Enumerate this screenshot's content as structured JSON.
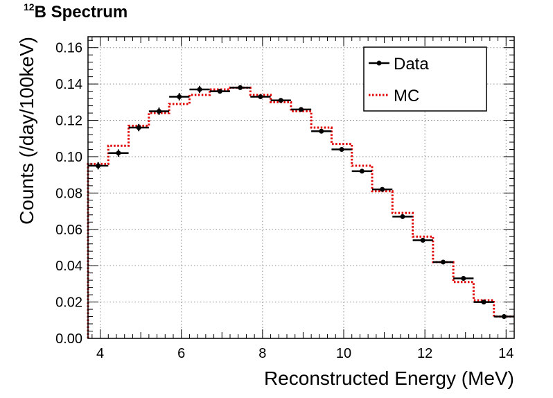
{
  "title": {
    "superscript": "12",
    "main": "B Spectrum"
  },
  "chart_data": {
    "type": "line",
    "xlabel": "Reconstructed Energy (MeV)",
    "ylabel": "Counts (/day/100keV)",
    "xlim": [
      3.7,
      14.2
    ],
    "ylim": [
      0,
      0.166
    ],
    "xticks": [
      4,
      6,
      8,
      10,
      12,
      14
    ],
    "yticks": [
      0.0,
      0.02,
      0.04,
      0.06,
      0.08,
      0.1,
      0.12,
      0.14,
      0.16
    ],
    "ytick_labels": [
      "0.00",
      "0.02",
      "0.04",
      "0.06",
      "0.08",
      "0.10",
      "0.12",
      "0.14",
      "0.16"
    ],
    "grid": true,
    "legend_position": "top-right",
    "bin_edges": [
      3.7,
      4.2,
      4.7,
      5.2,
      5.7,
      6.2,
      6.7,
      7.2,
      7.7,
      8.2,
      8.7,
      9.2,
      9.7,
      10.2,
      10.7,
      11.2,
      11.7,
      12.2,
      12.7,
      13.2,
      13.7,
      14.2
    ],
    "series": [
      {
        "name": "Data",
        "style": "points-with-xerr",
        "color": "#000000",
        "x": [
          3.95,
          4.45,
          4.95,
          5.45,
          5.95,
          6.45,
          6.95,
          7.45,
          7.95,
          8.45,
          8.95,
          9.45,
          9.95,
          10.45,
          10.95,
          11.45,
          11.95,
          12.45,
          12.95,
          13.45,
          13.95
        ],
        "values": [
          0.095,
          0.102,
          0.116,
          0.125,
          0.133,
          0.137,
          0.136,
          0.138,
          0.133,
          0.131,
          0.126,
          0.114,
          0.104,
          0.092,
          0.082,
          0.067,
          0.054,
          0.042,
          0.033,
          0.02,
          0.012
        ],
        "errors": [
          0.002,
          0.002,
          0.002,
          0.002,
          0.002,
          0.002,
          0.001,
          0.001,
          0.001,
          0.001,
          0.001,
          0.001,
          0.001,
          0.001,
          0.001,
          0.001,
          0.001,
          0.001,
          0.001,
          0.001,
          0.001
        ]
      },
      {
        "name": "MC",
        "style": "step-dotted",
        "color": "#e00000",
        "values": [
          0.096,
          0.106,
          0.117,
          0.124,
          0.129,
          0.134,
          0.137,
          0.138,
          0.134,
          0.13,
          0.125,
          0.116,
          0.107,
          0.095,
          0.081,
          0.069,
          0.056,
          0.042,
          0.031,
          0.021,
          0.012
        ]
      }
    ]
  }
}
